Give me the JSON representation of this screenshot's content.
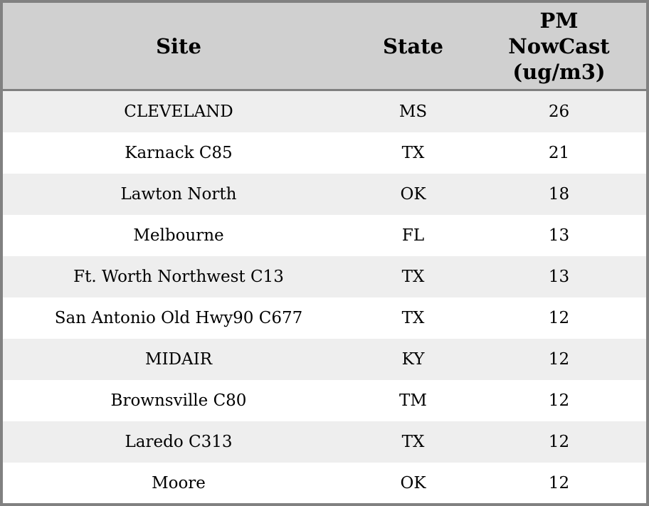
{
  "table": {
    "header": {
      "site": "Site",
      "state": "State",
      "pm_label": "PM NowCast (ug/m3)",
      "pm_lines": [
        "PM",
        "NowCast",
        "(ug/m3)"
      ]
    },
    "rows": [
      {
        "site": "CLEVELAND",
        "state": "MS",
        "pm": "26"
      },
      {
        "site": "Karnack C85",
        "state": "TX",
        "pm": "21"
      },
      {
        "site": "Lawton North",
        "state": "OK",
        "pm": "18"
      },
      {
        "site": "Melbourne",
        "state": "FL",
        "pm": "13"
      },
      {
        "site": "Ft. Worth Northwest C13",
        "state": "TX",
        "pm": "13"
      },
      {
        "site": "San Antonio Old Hwy90 C677",
        "state": "TX",
        "pm": "12"
      },
      {
        "site": "MIDAIR",
        "state": "KY",
        "pm": "12"
      },
      {
        "site": "Brownsville C80",
        "state": "TM",
        "pm": "12"
      },
      {
        "site": "Laredo C313",
        "state": "TX",
        "pm": "12"
      },
      {
        "site": "Moore",
        "state": "OK",
        "pm": "12"
      }
    ]
  },
  "chart_data": {
    "type": "table",
    "title": "",
    "columns": [
      "Site",
      "State",
      "PM NowCast (ug/m3)"
    ],
    "rows": [
      [
        "CLEVELAND",
        "MS",
        26
      ],
      [
        "Karnack C85",
        "TX",
        21
      ],
      [
        "Lawton North",
        "OK",
        18
      ],
      [
        "Melbourne",
        "FL",
        13
      ],
      [
        "Ft. Worth Northwest C13",
        "TX",
        13
      ],
      [
        "San Antonio Old Hwy90 C677",
        "TX",
        12
      ],
      [
        "MIDAIR",
        "KY",
        12
      ],
      [
        "Brownsville C80",
        "TM",
        12
      ],
      [
        "Laredo C313",
        "TX",
        12
      ],
      [
        "Moore",
        "OK",
        12
      ]
    ],
    "layout_hints": {
      "striped_rows": true,
      "header_position": "top",
      "alignment": "center"
    }
  },
  "colors": {
    "header_bg": "#d0d0d0",
    "row_stripe_bg": "#eeeeee",
    "row_bg": "#ffffff",
    "outer_border": "#818181",
    "header_divider": "#808080",
    "text": "#000000"
  }
}
